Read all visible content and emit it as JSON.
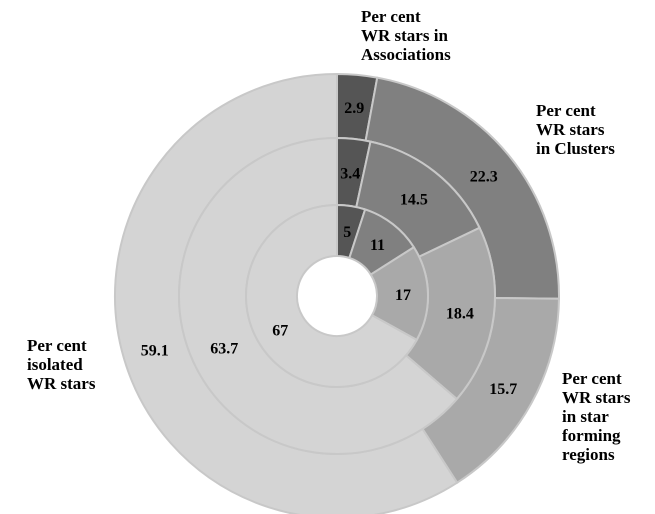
{
  "chart_data": {
    "type": "pie",
    "subtype": "multi-level donut",
    "categories": [
      "Per cent WR stars in Associations",
      "Per cent WR stars in Clusters",
      "Per cent WR stars in star forming regions",
      "Per cent isolated WR stars"
    ],
    "category_label_lines": [
      [
        "Per cent",
        "WR stars in",
        "Associations"
      ],
      [
        "Per cent",
        "WR stars",
        "in Clusters"
      ],
      [
        "Per cent",
        "WR stars",
        "in star",
        "forming",
        "regions"
      ],
      [
        "Per cent",
        "isolated",
        "WR stars"
      ]
    ],
    "colors": [
      "#555555",
      "#808080",
      "#a9a9a9",
      "#d4d4d4"
    ],
    "rings": [
      {
        "ring": "outer",
        "values": [
          2.9,
          22.3,
          15.7,
          59.1
        ]
      },
      {
        "ring": "middle",
        "values": [
          3.4,
          14.5,
          18.4,
          63.7
        ]
      },
      {
        "ring": "inner",
        "values": [
          5,
          11,
          17,
          67
        ]
      }
    ],
    "value_labels": [
      [
        "2.9",
        "22.3",
        "15.7",
        "59.1"
      ],
      [
        "3.4",
        "14.5",
        "18.4",
        "63.7"
      ],
      [
        "5",
        "11",
        "17",
        "67"
      ]
    ],
    "title": "",
    "legend": "none"
  }
}
